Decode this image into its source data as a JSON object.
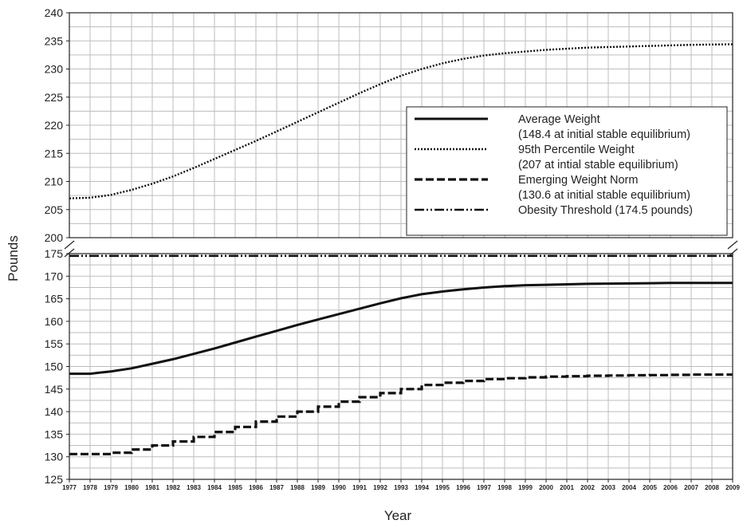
{
  "chart_data": {
    "type": "line",
    "xlabel": "Year",
    "ylabel": "Pounds",
    "x": [
      1977,
      1978,
      1979,
      1980,
      1981,
      1982,
      1983,
      1984,
      1985,
      1986,
      1987,
      1988,
      1989,
      1990,
      1991,
      1992,
      1993,
      1994,
      1995,
      1996,
      1997,
      1998,
      1999,
      2000,
      2001,
      2002,
      2003,
      2004,
      2005,
      2006,
      2007,
      2008,
      2009
    ],
    "upper_panel": {
      "ylim": [
        200,
        240
      ],
      "yticks": [
        200,
        205,
        210,
        215,
        220,
        225,
        230,
        235,
        240
      ]
    },
    "lower_panel": {
      "ylim": [
        125,
        175
      ],
      "yticks": [
        125,
        130,
        135,
        140,
        145,
        150,
        155,
        160,
        165,
        170,
        175
      ]
    },
    "grid": true,
    "axis_break": true,
    "legend_placement": "right",
    "series": [
      {
        "name": "Average Weight",
        "note": "(148.4 at initial stable equilibrium)",
        "style": "solid",
        "panel": "lower",
        "values": [
          148.4,
          148.4,
          148.9,
          149.6,
          150.6,
          151.6,
          152.8,
          154.0,
          155.3,
          156.6,
          157.9,
          159.2,
          160.4,
          161.6,
          162.8,
          164.0,
          165.1,
          166.0,
          166.6,
          167.1,
          167.5,
          167.8,
          168.0,
          168.1,
          168.2,
          168.3,
          168.35,
          168.4,
          168.45,
          168.5,
          168.5,
          168.5,
          168.5
        ]
      },
      {
        "name": "95th Percentile Weight",
        "note": "(207 at intial stable equilibrium)",
        "style": "dotted",
        "panel": "upper",
        "values": [
          207.0,
          207.1,
          207.6,
          208.5,
          209.6,
          210.9,
          212.4,
          214.0,
          215.6,
          217.2,
          218.9,
          220.6,
          222.3,
          224.0,
          225.7,
          227.3,
          228.8,
          230.0,
          231.0,
          231.8,
          232.4,
          232.8,
          233.1,
          233.4,
          233.6,
          233.8,
          233.9,
          234.0,
          234.1,
          234.2,
          234.3,
          234.35,
          234.4
        ]
      },
      {
        "name": "Emerging Weight Norm",
        "note": "(130.6 at initial stable equilibrium)",
        "style": "dashed-step",
        "panel": "lower",
        "values": [
          130.6,
          130.6,
          130.9,
          131.6,
          132.5,
          133.4,
          134.4,
          135.5,
          136.6,
          137.8,
          138.9,
          140.0,
          141.1,
          142.2,
          143.2,
          144.1,
          145.0,
          145.9,
          146.4,
          146.8,
          147.2,
          147.4,
          147.6,
          147.75,
          147.85,
          147.95,
          148.0,
          148.05,
          148.1,
          148.15,
          148.2,
          148.2,
          148.2
        ]
      },
      {
        "name": "Obesity Threshold (174.5 pounds)",
        "note": "",
        "style": "dash-dot-dot",
        "panel": "lower",
        "values": [
          174.5,
          174.5,
          174.5,
          174.5,
          174.5,
          174.5,
          174.5,
          174.5,
          174.5,
          174.5,
          174.5,
          174.5,
          174.5,
          174.5,
          174.5,
          174.5,
          174.5,
          174.5,
          174.5,
          174.5,
          174.5,
          174.5,
          174.5,
          174.5,
          174.5,
          174.5,
          174.5,
          174.5,
          174.5,
          174.5,
          174.5,
          174.5,
          174.5
        ]
      }
    ]
  }
}
